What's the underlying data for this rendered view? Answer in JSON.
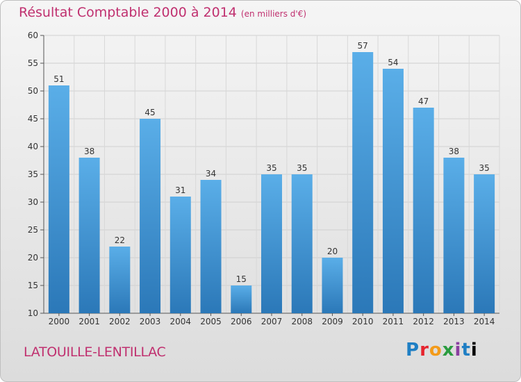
{
  "header": {
    "title": "Résultat Comptable 2000 à 2014",
    "unit": "(en milliers d'€)"
  },
  "footer": {
    "commune": "LATOUILLE-LENTILLAC",
    "logo": "Proxiti"
  },
  "colors": {
    "title": "#c0306f",
    "bar_top": "#5aaee8",
    "bar_bottom": "#2b78b8"
  },
  "chart_data": {
    "type": "bar",
    "categories": [
      "2000",
      "2001",
      "2002",
      "2003",
      "2004",
      "2005",
      "2006",
      "2007",
      "2008",
      "2009",
      "2010",
      "2011",
      "2012",
      "2013",
      "2014"
    ],
    "values": [
      51,
      38,
      22,
      45,
      31,
      34,
      15,
      35,
      35,
      20,
      57,
      54,
      47,
      38,
      35
    ],
    "ylim": [
      10,
      60
    ],
    "yticks": [
      10,
      15,
      20,
      25,
      30,
      35,
      40,
      45,
      50,
      55,
      60
    ],
    "grid": true
  }
}
